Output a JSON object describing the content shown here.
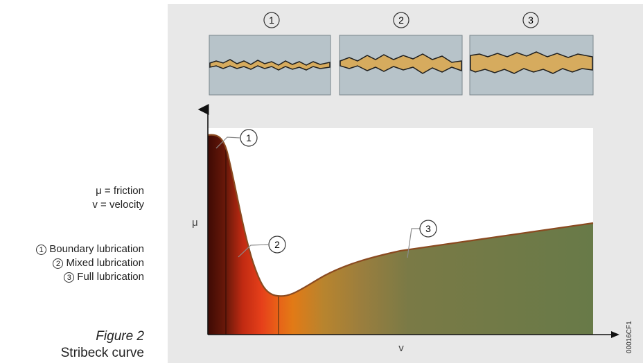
{
  "legend": {
    "definitions": [
      "μ = friction",
      "v = velocity"
    ],
    "regions": [
      {
        "num": "1",
        "label": "Boundary lubrication"
      },
      {
        "num": "2",
        "label": "Mixed lubrication"
      },
      {
        "num": "3",
        "label": "Full lubrication"
      }
    ]
  },
  "caption": {
    "figure": "Figure 2",
    "title": "Stribeck curve"
  },
  "diagram": {
    "top_labels": [
      "1",
      "2",
      "3"
    ],
    "curve_markers": [
      "1",
      "2",
      "3"
    ],
    "y_axis_label": "μ",
    "x_axis_label": "v",
    "image_code": "00016CF1"
  },
  "colors": {
    "panel_bg": "#e8e8e8",
    "surface_blue": "#b7c3c9",
    "lubricant": "#d6ab5e",
    "boundary_dark": "#5a1408",
    "mixed_red": "#e8401a",
    "transition_orange": "#e07a14",
    "full_green": "#6a7a48"
  }
}
